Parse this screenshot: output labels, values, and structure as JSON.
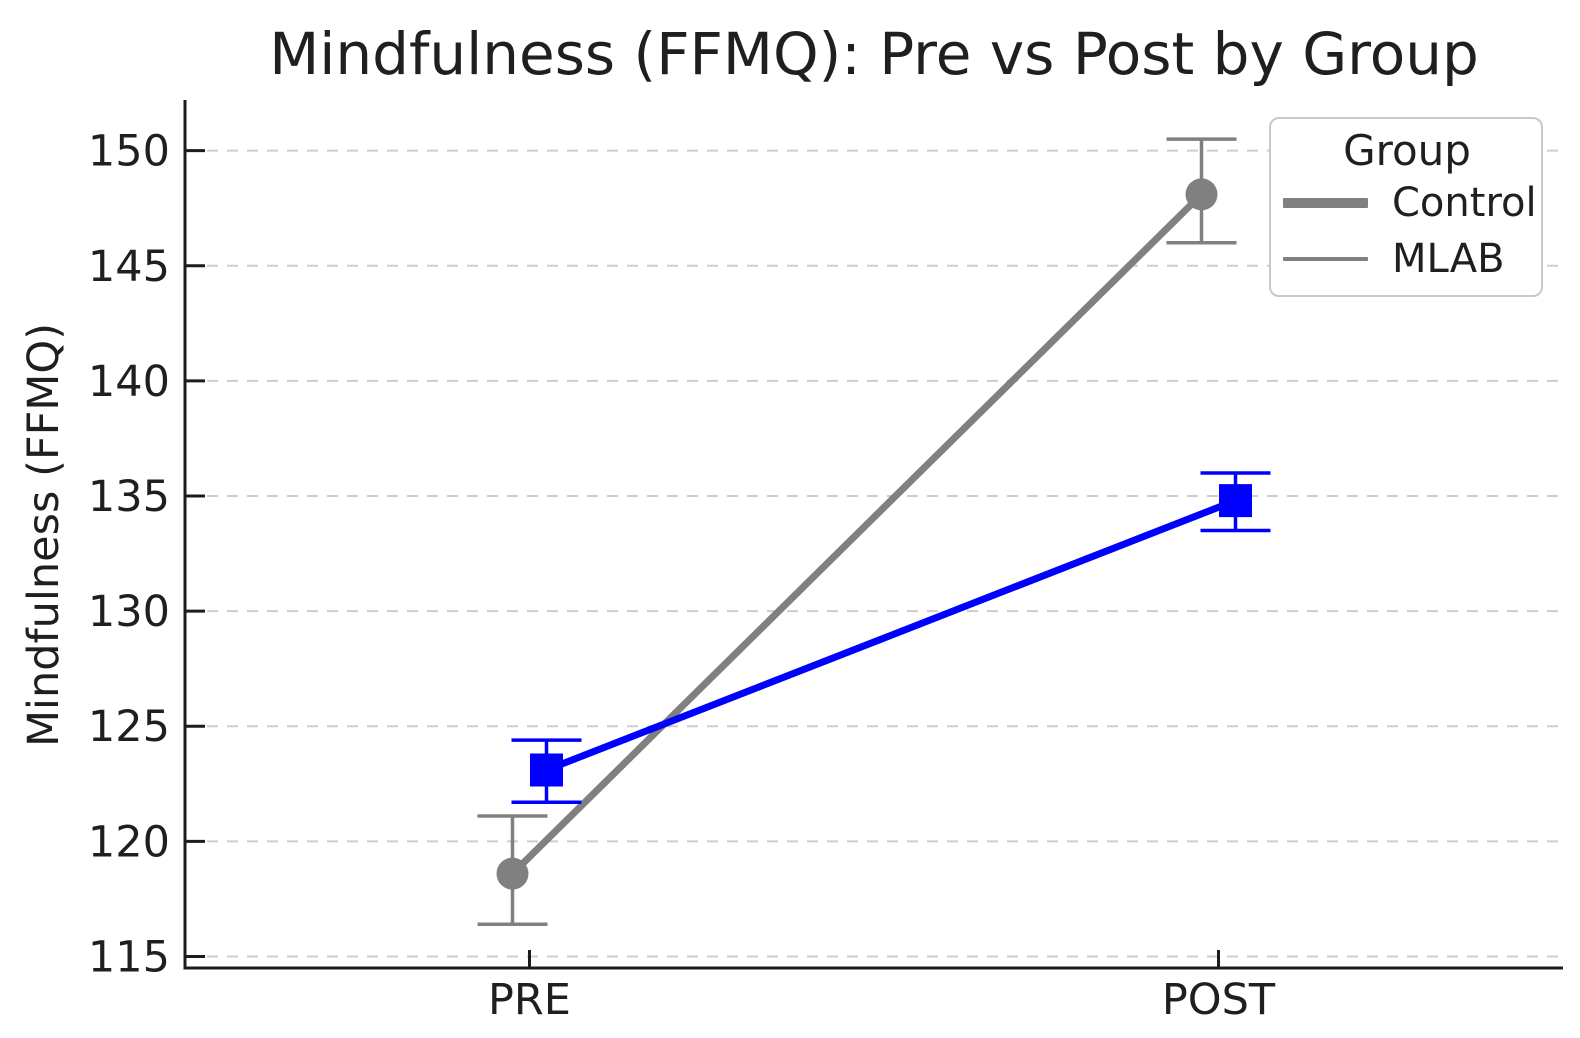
{
  "chart_data": {
    "type": "line",
    "title": "Mindfulness (FFMQ): Pre vs Post by Group",
    "ylabel": "Mindfulness (FFMQ)",
    "xlabel": "",
    "categories": [
      "PRE",
      "POST"
    ],
    "yticks": [
      115,
      120,
      125,
      130,
      135,
      140,
      145,
      150
    ],
    "ylim": [
      114.5,
      152.2
    ],
    "grid": {
      "axis": "y",
      "style": "dashed",
      "color": "#cdcdcd"
    },
    "legend": {
      "title": "Group",
      "position": "upper-right",
      "entries": [
        {
          "label": "Control",
          "line": "thick",
          "color": "#808080"
        },
        {
          "label": "MLAB",
          "line": "thin",
          "color": "#808080"
        }
      ]
    },
    "series": [
      {
        "name": "Control",
        "color": "#808080",
        "marker": "circle",
        "values": [
          118.6,
          148.1
        ],
        "err_low": [
          116.4,
          146.0
        ],
        "err_high": [
          121.1,
          150.5
        ]
      },
      {
        "name": "MLAB",
        "color": "#0000ff",
        "marker": "square",
        "values": [
          123.1,
          134.8
        ],
        "err_low": [
          121.7,
          133.5
        ],
        "err_high": [
          124.4,
          136.0
        ]
      }
    ]
  }
}
